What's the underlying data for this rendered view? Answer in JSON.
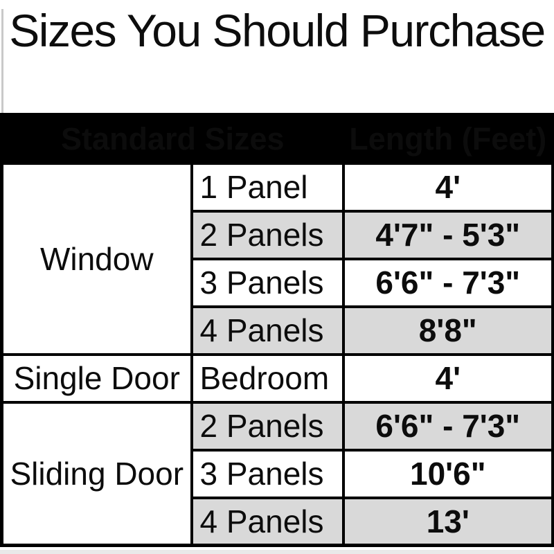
{
  "page": {
    "title": "Sizes You Should Purchase"
  },
  "table": {
    "header": {
      "standard_sizes": "Standard Sizes",
      "length_feet": "Length (Feet)"
    },
    "groups": [
      {
        "category": "Window",
        "rows": [
          {
            "size": "1 Panel",
            "length": "4'"
          },
          {
            "size": "2 Panels",
            "length": "4'7\" - 5'3\""
          },
          {
            "size": "3 Panels",
            "length": "6'6\" - 7'3\""
          },
          {
            "size": "4 Panels",
            "length": "8'8\""
          }
        ]
      },
      {
        "category": "Single Door",
        "rows": [
          {
            "size": "Bedroom",
            "length": "4'"
          }
        ]
      },
      {
        "category": "Sliding Door",
        "rows": [
          {
            "size": "2 Panels",
            "length": "6'6\" - 7'3\""
          },
          {
            "size": "3 Panels",
            "length": "10'6\""
          },
          {
            "size": "4 Panels",
            "length": "13'"
          }
        ]
      }
    ]
  },
  "colors": {
    "header_bg": "#000000",
    "header_text": "#ffffff",
    "row_bg": "#ffffff",
    "row_alt_bg": "#d9d9d9",
    "border": "#000000",
    "title_text": "#0d0d0d"
  },
  "chart_data": {
    "type": "table",
    "title": "Sizes You Should Purchase",
    "columns": [
      "Standard Sizes (category)",
      "Standard Sizes (configuration)",
      "Length (Feet)"
    ],
    "rows": [
      [
        "Window",
        "1 Panel",
        "4'"
      ],
      [
        "Window",
        "2 Panels",
        "4'7\" - 5'3\""
      ],
      [
        "Window",
        "3 Panels",
        "6'6\" - 7'3\""
      ],
      [
        "Window",
        "4 Panels",
        "8'8\""
      ],
      [
        "Single Door",
        "Bedroom",
        "4'"
      ],
      [
        "Sliding Door",
        "2 Panels",
        "6'6\" - 7'3\""
      ],
      [
        "Sliding Door",
        "3 Panels",
        "10'6\""
      ],
      [
        "Sliding Door",
        "4 Panels",
        "13'"
      ]
    ]
  }
}
